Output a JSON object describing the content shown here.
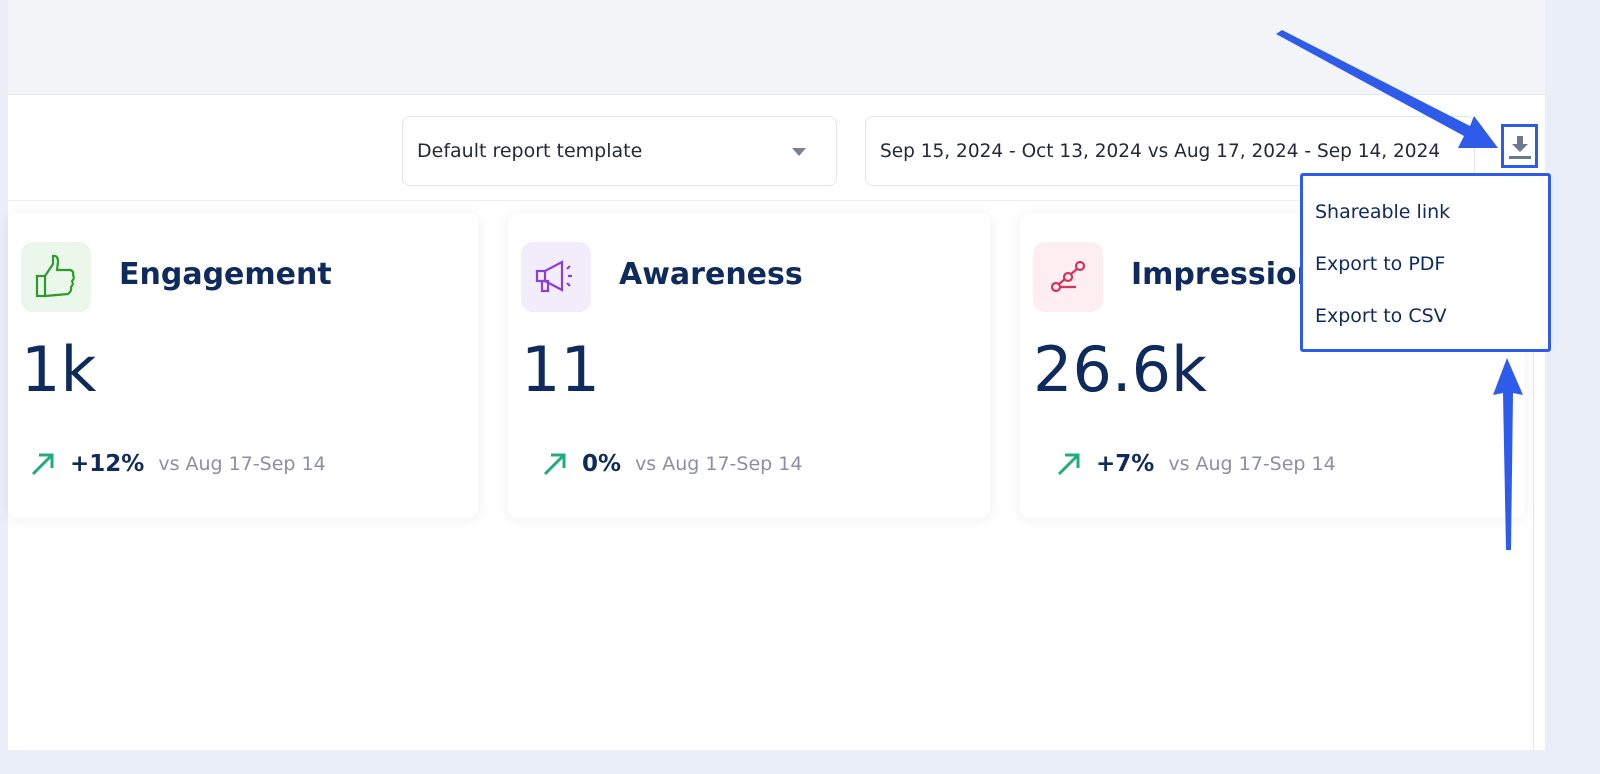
{
  "toolbar": {
    "template_select": "Default report template",
    "date_range": "Sep 15, 2024 - Oct 13, 2024 vs Aug 17, 2024 - Sep 14, 2024",
    "download_icon": "download-icon"
  },
  "cards": [
    {
      "title": "Engagement",
      "value": "1k",
      "change": "+12%",
      "compare": "vs Aug 17-Sep 14",
      "icon": "thumbs-up-icon",
      "icon_color": "#2e9a2e",
      "icon_bg": "#eaf7ea"
    },
    {
      "title": "Awareness",
      "value": "11",
      "change": "0%",
      "compare": "vs Aug 17-Sep 14",
      "icon": "megaphone-icon",
      "icon_color": "#8b3fd9",
      "icon_bg": "#f3ecfb"
    },
    {
      "title": "Impressions",
      "value": "26.6k",
      "change": "+7%",
      "compare": "vs Aug 17-Sep 14",
      "icon": "share-nodes-icon",
      "icon_color": "#d6335a",
      "icon_bg": "#fdeef2"
    }
  ],
  "export_menu": {
    "items": [
      "Shareable link",
      "Export to PDF",
      "Export to CSV"
    ]
  },
  "colors": {
    "annotation": "#2f5bea",
    "trend_up": "#1fae7a",
    "text_primary": "#0f2a5c"
  }
}
